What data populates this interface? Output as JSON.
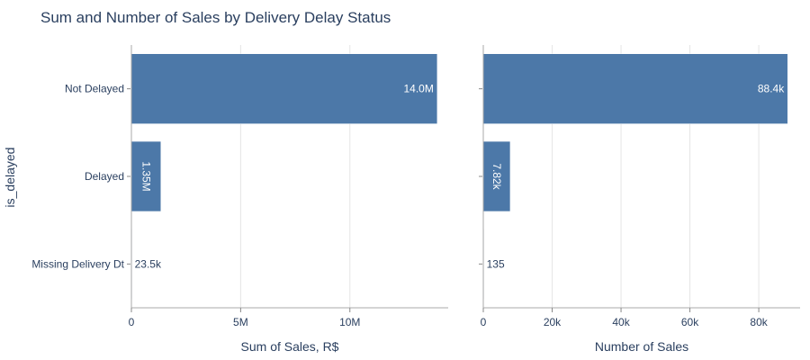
{
  "chart_data": {
    "type": "bar",
    "orientation": "horizontal",
    "title": "Sum and Number of Sales by Delivery Delay Status",
    "ylabel": "is_delayed",
    "categories": [
      "Not Delayed",
      "Delayed",
      "Missing Delivery Dt"
    ],
    "bar_color": "#4c78a8",
    "grid": true,
    "panels": [
      {
        "xlabel": "Sum of Sales, R$",
        "values": [
          14000000,
          1350000,
          23500
        ],
        "labels": [
          "14.0M",
          "1.35M",
          "23.5k"
        ],
        "xlim": [
          0,
          14500000
        ],
        "ticks": [
          0,
          5000000,
          10000000
        ],
        "tick_labels": [
          "0",
          "5M",
          "10M"
        ]
      },
      {
        "xlabel": "Number of Sales",
        "values": [
          88400,
          7820,
          135
        ],
        "labels": [
          "88.4k",
          "7.82k",
          "135"
        ],
        "xlim": [
          0,
          92000
        ],
        "ticks": [
          0,
          20000,
          40000,
          60000,
          80000
        ],
        "tick_labels": [
          "0",
          "20k",
          "40k",
          "60k",
          "80k"
        ]
      }
    ]
  }
}
